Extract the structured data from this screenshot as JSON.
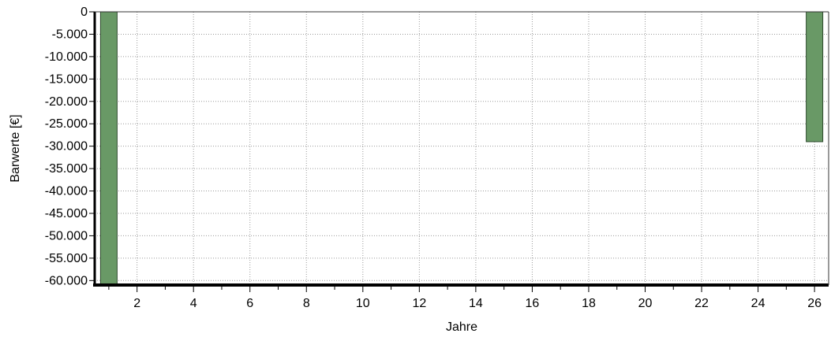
{
  "chart_data": {
    "type": "bar",
    "xlabel": "Jahre",
    "ylabel": "Barwerte [€]",
    "xlim": [
      0.5,
      26.5
    ],
    "ylim": [
      -61000,
      0
    ],
    "x_ticks": [
      2,
      4,
      6,
      8,
      10,
      12,
      14,
      16,
      18,
      20,
      22,
      24,
      26
    ],
    "y_ticks": [
      0,
      -5000,
      -10000,
      -15000,
      -20000,
      -25000,
      -30000,
      -35000,
      -40000,
      -45000,
      -50000,
      -55000,
      -60000
    ],
    "y_tick_labels": [
      "0",
      "-5.000",
      "-10.000",
      "-15.000",
      "-20.000",
      "-25.000",
      "-30.000",
      "-35.000",
      "-40.000",
      "-45.000",
      "-50.000",
      "-55.000",
      "-60.000"
    ],
    "x": [
      1,
      26
    ],
    "values": [
      -61000,
      -29000
    ],
    "bar_color": "#699966",
    "grid": true
  }
}
